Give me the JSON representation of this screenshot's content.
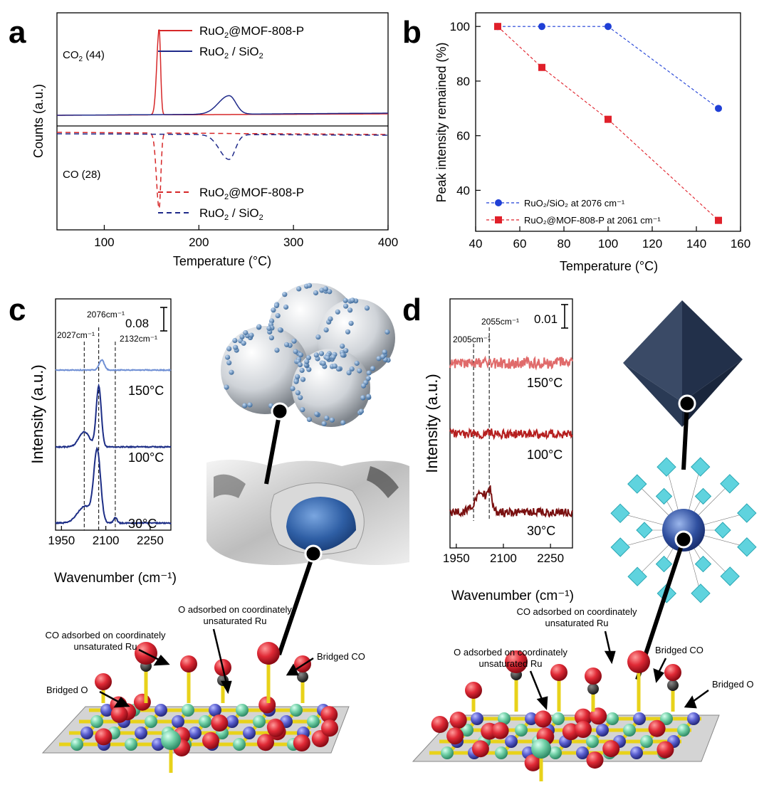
{
  "chart_data": [
    {
      "panel": "a",
      "type": "line",
      "xlabel": "Temperature (°C)",
      "ylabel": "Counts (a.u.)",
      "xlim": [
        50,
        400
      ],
      "xticks": [
        100,
        200,
        300,
        400
      ],
      "upper_label": "CO2 (44)",
      "lower_label": "CO (28)",
      "series": [
        {
          "name": "RuO2@MOF-808-P",
          "color": "#d62728",
          "style": "solid",
          "panel": "upper",
          "peaks": [
            {
              "x": 158,
              "height": 1.0
            }
          ]
        },
        {
          "name": "RuO2 / SiO2",
          "color": "#1f2a8a",
          "style": "solid",
          "panel": "upper",
          "peaks": [
            {
              "x": 232,
              "height": 0.21
            }
          ]
        },
        {
          "name": "RuO2@MOF-808-P",
          "color": "#d62728",
          "style": "dashed",
          "panel": "lower",
          "peaks": [
            {
              "x": 158,
              "height": 1.0
            }
          ]
        },
        {
          "name": "RuO2 / SiO2",
          "color": "#1f2a8a",
          "style": "dashed",
          "panel": "lower",
          "peaks": [
            {
              "x": 232,
              "height": 0.32
            }
          ]
        }
      ]
    },
    {
      "panel": "b",
      "type": "scatter",
      "xlabel": "Temperature (°C)",
      "ylabel": "Peak intensity remained (%)",
      "xlim": [
        40,
        160
      ],
      "ylim": [
        25,
        105
      ],
      "xticks": [
        40,
        60,
        80,
        100,
        120,
        140,
        160
      ],
      "yticks": [
        40,
        60,
        80,
        100
      ],
      "series": [
        {
          "name": "RuO₂/SiO₂ at 2076 cm⁻¹",
          "color": "#1f3fd6",
          "marker": "circle",
          "x": [
            50,
            70,
            100,
            150
          ],
          "y": [
            100,
            100,
            100,
            70
          ]
        },
        {
          "name": "RuO₂@MOF-808-P at 2061 cm⁻¹",
          "color": "#e0202a",
          "marker": "square",
          "x": [
            50,
            70,
            100,
            150
          ],
          "y": [
            100,
            85,
            66,
            29
          ]
        }
      ]
    },
    {
      "panel": "c",
      "type": "line",
      "xlabel": "Wavenumber (cm⁻¹)",
      "ylabel": "Intensity (a.u.)",
      "xlim": [
        1930,
        2320
      ],
      "xticks": [
        1950,
        2100,
        2250
      ],
      "scale_bar": "0.08",
      "ref_lines": [
        {
          "x": 2027,
          "label": "2027cm⁻¹"
        },
        {
          "x": 2076,
          "label": "2076cm⁻¹"
        },
        {
          "x": 2132,
          "label": "2132cm⁻¹"
        }
      ],
      "series": [
        {
          "name": "150°C",
          "color": "#6f8fd4",
          "offset": 0.0,
          "peaks": [
            {
              "x": 2086,
              "height": 0.45,
              "width": 12
            }
          ]
        },
        {
          "name": "100°C",
          "color": "#1d2e86",
          "offset": 1.0,
          "peaks": [
            {
              "x": 2076,
              "height": 1.0,
              "width": 12
            },
            {
              "x": 2027,
              "height": 0.25,
              "width": 25
            }
          ]
        },
        {
          "name": "30°C",
          "color": "#1d2e86",
          "offset": 2.2,
          "peaks": [
            {
              "x": 2071,
              "height": 1.45,
              "width": 16
            },
            {
              "x": 2030,
              "height": 0.35,
              "width": 35
            },
            {
              "x": 2132,
              "height": 0.12,
              "width": 8
            }
          ]
        }
      ]
    },
    {
      "panel": "d",
      "type": "line",
      "xlabel": "Wavenumber (cm⁻¹)",
      "ylabel": "Intensity (a.u.)",
      "xlim": [
        1930,
        2320
      ],
      "xticks": [
        1950,
        2100,
        2250
      ],
      "scale_bar": "0.01",
      "ref_lines": [
        {
          "x": 2005,
          "label": "2005cm⁻¹"
        },
        {
          "x": 2055,
          "label": "2055cm⁻¹"
        }
      ],
      "series": [
        {
          "name": "150°C",
          "color": "#e06a6a",
          "offset": 0.0,
          "peaks": []
        },
        {
          "name": "100°C",
          "color": "#b51f1f",
          "offset": 1.0,
          "peaks": [
            {
              "x": 2055,
              "height": 0.12,
              "width": 10
            }
          ]
        },
        {
          "name": "30°C",
          "color": "#7a1010",
          "offset": 2.0,
          "peaks": [
            {
              "x": 2030,
              "height": 0.45,
              "width": 30
            },
            {
              "x": 2057,
              "height": 0.35,
              "width": 8
            }
          ]
        }
      ]
    }
  ],
  "labels": {
    "panel_a": "a",
    "panel_b": "b",
    "panel_c": "c",
    "panel_d": "d",
    "c_ann1": "O adsorbed on coordinately",
    "c_ann1b": "unsaturated Ru",
    "c_ann2": "CO adsorbed on coordinately",
    "c_ann2b": "unsaturated Ru",
    "c_ann3": "Bridged CO",
    "c_ann4": "Bridged O",
    "d_ann1": "CO adsorbed on coordinately",
    "d_ann1b": "unsaturated Ru",
    "d_ann2": "O adsorbed on coordinately",
    "d_ann2b": "unsaturated Ru",
    "d_ann3": "Bridged CO",
    "d_ann4": "Bridged O"
  },
  "colors": {
    "oxygen": "#e0303a",
    "carbon": "#333333",
    "ru": "#6fcfa5",
    "bond": "#e8d21a",
    "metal2": "#5a5fd0",
    "mof": "#5fd3de",
    "octa": "#2a3a55"
  }
}
